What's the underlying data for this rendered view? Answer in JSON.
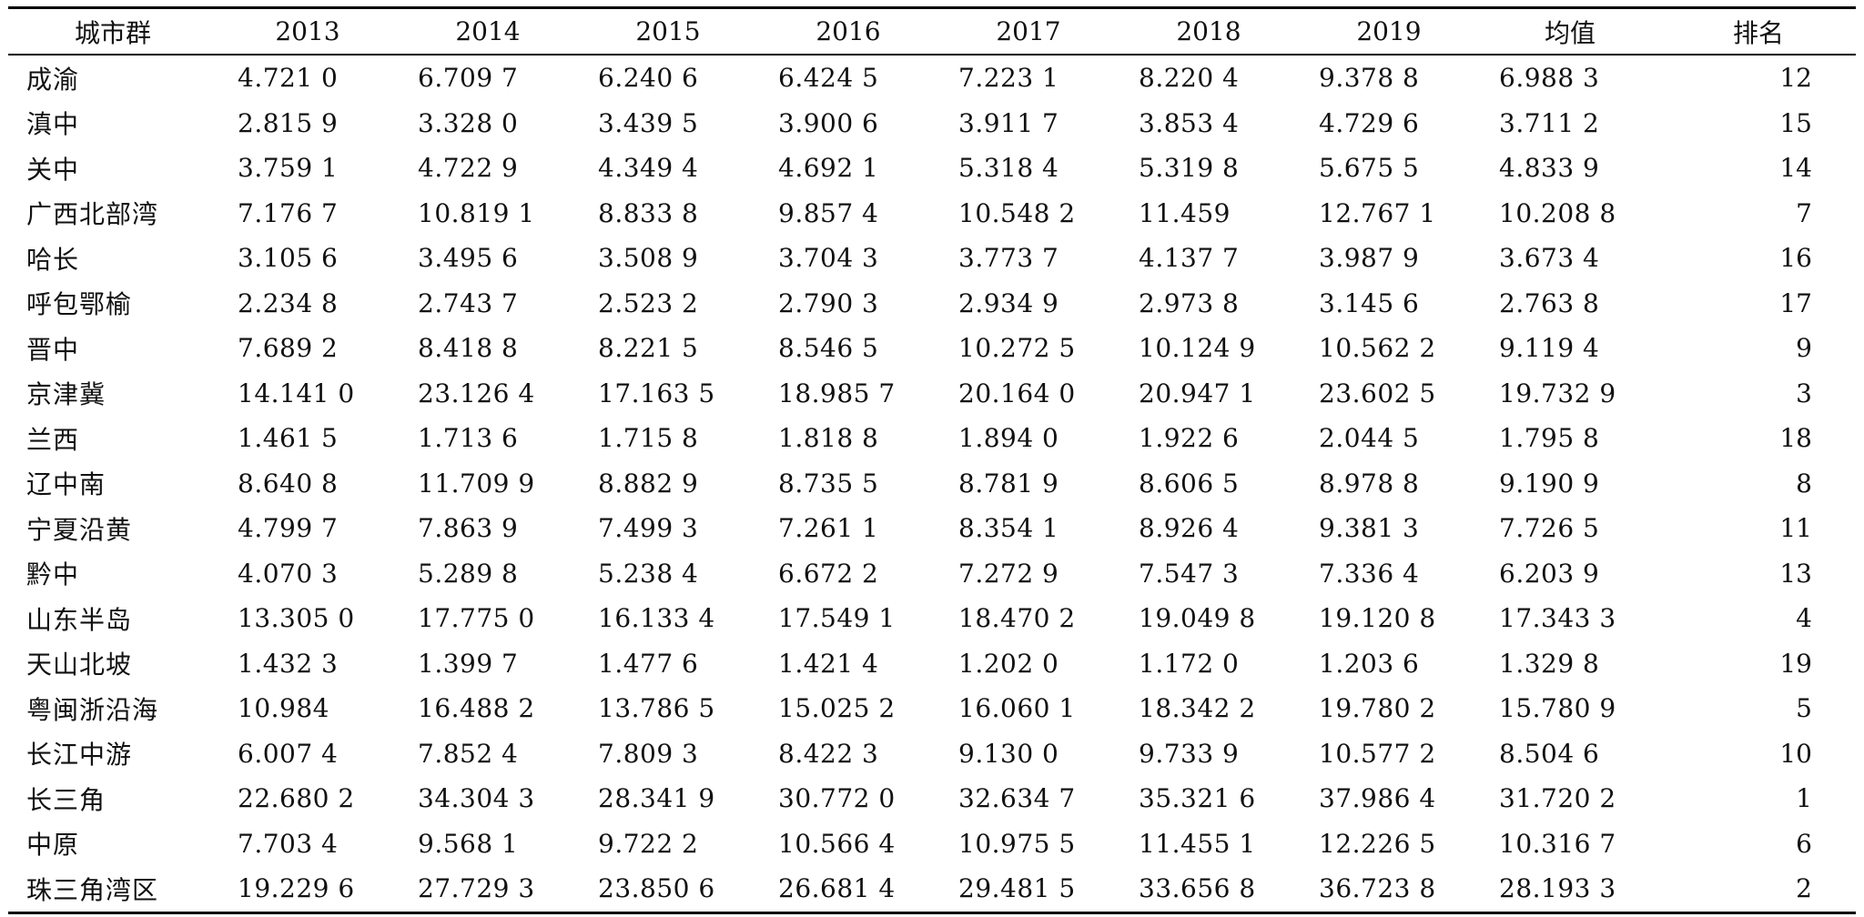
{
  "table": {
    "headers": [
      "城市群",
      "2013",
      "2014",
      "2015",
      "2016",
      "2017",
      "2018",
      "2019",
      "均值",
      "排名"
    ],
    "rows": [
      [
        "成渝",
        "4.721 0",
        "6.709 7",
        "6.240 6",
        "6.424 5",
        "7.223 1",
        "8.220 4",
        "9.378 8",
        "6.988 3",
        "12"
      ],
      [
        "滇中",
        "2.815 9",
        "3.328 0",
        "3.439 5",
        "3.900 6",
        "3.911 7",
        "3.853 4",
        "4.729 6",
        "3.711 2",
        "15"
      ],
      [
        "关中",
        "3.759 1",
        "4.722 9",
        "4.349 4",
        "4.692 1",
        "5.318 4",
        "5.319 8",
        "5.675 5",
        "4.833 9",
        "14"
      ],
      [
        "广西北部湾",
        "7.176 7",
        "10.819 1",
        "8.833 8",
        "9.857 4",
        "10.548 2",
        "11.459",
        "12.767 1",
        "10.208 8",
        "7"
      ],
      [
        "哈长",
        "3.105 6",
        "3.495 6",
        "3.508 9",
        "3.704 3",
        "3.773 7",
        "4.137 7",
        "3.987 9",
        "3.673 4",
        "16"
      ],
      [
        "呼包鄂榆",
        "2.234 8",
        "2.743 7",
        "2.523 2",
        "2.790 3",
        "2.934 9",
        "2.973 8",
        "3.145 6",
        "2.763 8",
        "17"
      ],
      [
        "晋中",
        "7.689 2",
        "8.418 8",
        "8.221 5",
        "8.546 5",
        "10.272 5",
        "10.124 9",
        "10.562 2",
        "9.119 4",
        "9"
      ],
      [
        "京津冀",
        "14.141 0",
        "23.126 4",
        "17.163 5",
        "18.985 7",
        "20.164 0",
        "20.947 1",
        "23.602 5",
        "19.732 9",
        "3"
      ],
      [
        "兰西",
        "1.461 5",
        "1.713 6",
        "1.715 8",
        "1.818 8",
        "1.894 0",
        "1.922 6",
        "2.044 5",
        "1.795 8",
        "18"
      ],
      [
        "辽中南",
        "8.640 8",
        "11.709 9",
        "8.882 9",
        "8.735 5",
        "8.781 9",
        "8.606 5",
        "8.978 8",
        "9.190 9",
        "8"
      ],
      [
        "宁夏沿黄",
        "4.799 7",
        "7.863 9",
        "7.499 3",
        "7.261 1",
        "8.354 1",
        "8.926 4",
        "9.381 3",
        "7.726 5",
        "11"
      ],
      [
        "黔中",
        "4.070 3",
        "5.289 8",
        "5.238 4",
        "6.672 2",
        "7.272 9",
        "7.547 3",
        "7.336 4",
        "6.203 9",
        "13"
      ],
      [
        "山东半岛",
        "13.305 0",
        "17.775 0",
        "16.133 4",
        "17.549 1",
        "18.470 2",
        "19.049 8",
        "19.120 8",
        "17.343 3",
        "4"
      ],
      [
        "天山北坡",
        "1.432 3",
        "1.399 7",
        "1.477 6",
        "1.421 4",
        "1.202 0",
        "1.172 0",
        "1.203 6",
        "1.329 8",
        "19"
      ],
      [
        "粤闽浙沿海",
        "10.984",
        "16.488 2",
        "13.786 5",
        "15.025 2",
        "16.060 1",
        "18.342 2",
        "19.780 2",
        "15.780 9",
        "5"
      ],
      [
        "长江中游",
        "6.007 4",
        "7.852 4",
        "7.809 3",
        "8.422 3",
        "9.130 0",
        "9.733 9",
        "10.577 2",
        "8.504 6",
        "10"
      ],
      [
        "长三角",
        "22.680 2",
        "34.304 3",
        "28.341 9",
        "30.772 0",
        "32.634 7",
        "35.321 6",
        "37.986 4",
        "31.720 2",
        "1"
      ],
      [
        "中原",
        "7.703 4",
        "9.568 1",
        "9.722 2",
        "10.566 4",
        "10.975 5",
        "11.455 1",
        "12.226 5",
        "10.316 7",
        "6"
      ],
      [
        "珠三角湾区",
        "19.229 6",
        "27.729 3",
        "23.850 6",
        "26.681 4",
        "29.481 5",
        "33.656 8",
        "36.723 8",
        "28.193 3",
        "2"
      ]
    ]
  }
}
